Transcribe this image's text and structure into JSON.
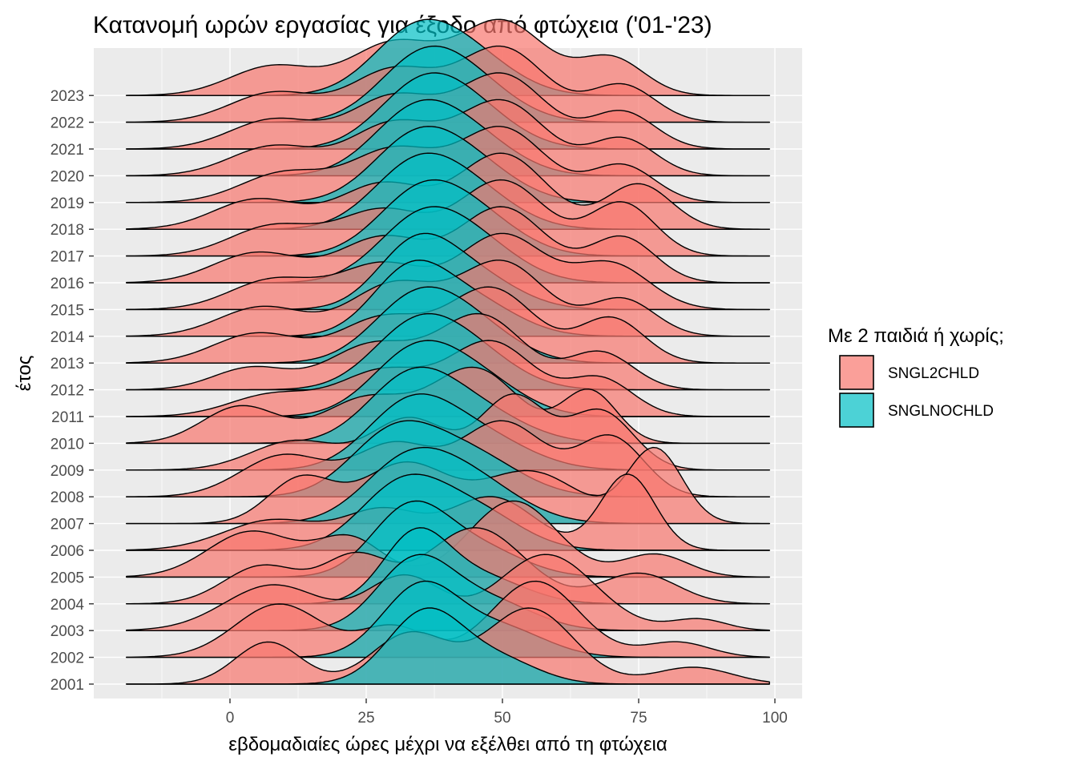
{
  "chart_data": {
    "type": "area",
    "subtype": "ridgeline",
    "title": "Κατανομή ωρών εργασίας για έξοδο από φτώχεια ('01-'23)",
    "xlabel": "εβδομαδιαίες ώρες μέχρι να εξέλθει από τη φτώχεια",
    "ylabel": "έτος",
    "xlim": [
      -25,
      105
    ],
    "x_range": [
      -19,
      99
    ],
    "xticks": [
      "0",
      "25",
      "50",
      "75",
      "100"
    ],
    "grid": true,
    "legend_position": "right",
    "legend_title": "Με 2 παιδιά ή χωρίς;",
    "categories": [
      "2001",
      "2002",
      "2003",
      "2004",
      "2005",
      "2006",
      "2007",
      "2008",
      "2009",
      "2010",
      "2011",
      "2012",
      "2013",
      "2014",
      "2015",
      "2016",
      "2017",
      "2018",
      "2019",
      "2020",
      "2021",
      "2022",
      "2023"
    ],
    "series": [
      {
        "name": "SNGL2CHLD",
        "color": "#F8766D",
        "components": [
          [
            [
              7,
              6,
              0.5
            ],
            [
              33,
              7,
              0.6
            ],
            [
              55,
              8,
              0.9
            ],
            [
              85,
              7,
              0.2
            ]
          ],
          [
            [
              9,
              8,
              0.7
            ],
            [
              30,
              6,
              0.4
            ],
            [
              56,
              8,
              1.0
            ],
            [
              82,
              6,
              0.2
            ]
          ],
          [
            [
              8,
              9,
              0.6
            ],
            [
              32,
              7,
              0.7
            ],
            [
              58,
              9,
              1.0
            ],
            [
              86,
              5,
              0.15
            ]
          ],
          [
            [
              6,
              7,
              0.5
            ],
            [
              23,
              6,
              0.6
            ],
            [
              45,
              9,
              1.0
            ],
            [
              75,
              7,
              0.4
            ]
          ],
          [
            [
              4,
              8,
              0.6
            ],
            [
              22,
              6,
              0.5
            ],
            [
              52,
              8,
              1.0
            ],
            [
              78,
              6,
              0.3
            ]
          ],
          [
            [
              8,
              9,
              0.4
            ],
            [
              28,
              7,
              0.5
            ],
            [
              48,
              8,
              0.7
            ],
            [
              73,
              5,
              1.0
            ]
          ],
          [
            [
              13,
              6,
              0.6
            ],
            [
              32,
              8,
              0.8
            ],
            [
              55,
              9,
              0.7
            ],
            [
              78,
              5,
              1.0
            ]
          ],
          [
            [
              10,
              8,
              0.5
            ],
            [
              30,
              7,
              0.6
            ],
            [
              50,
              8,
              0.9
            ],
            [
              70,
              6,
              0.7
            ]
          ],
          [
            [
              12,
              8,
              0.4
            ],
            [
              33,
              7,
              0.7
            ],
            [
              52,
              6,
              1.0
            ],
            [
              68,
              6,
              0.8
            ]
          ],
          [
            [
              2,
              7,
              0.5
            ],
            [
              25,
              8,
              0.6
            ],
            [
              45,
              8,
              1.0
            ],
            [
              66,
              5,
              0.7
            ]
          ],
          [
            [
              8,
              8,
              0.3
            ],
            [
              28,
              8,
              0.6
            ],
            [
              48,
              8,
              1.0
            ],
            [
              68,
              6,
              0.5
            ]
          ],
          [
            [
              4,
              7,
              0.3
            ],
            [
              26,
              8,
              0.6
            ],
            [
              46,
              8,
              1.0
            ],
            [
              68,
              6,
              0.5
            ]
          ],
          [
            [
              5,
              8,
              0.4
            ],
            [
              28,
              8,
              0.6
            ],
            [
              48,
              8,
              1.0
            ],
            [
              70,
              6,
              0.6
            ]
          ],
          [
            [
              6,
              8,
              0.4
            ],
            [
              30,
              8,
              0.7
            ],
            [
              50,
              8,
              1.0
            ],
            [
              72,
              6,
              0.5
            ]
          ],
          [
            [
              8,
              8,
              0.4
            ],
            [
              28,
              8,
              0.6
            ],
            [
              50,
              8,
              1.0
            ],
            [
              70,
              7,
              0.6
            ]
          ],
          [
            [
              5,
              8,
              0.4
            ],
            [
              28,
              8,
              0.6
            ],
            [
              50,
              8,
              1.0
            ],
            [
              72,
              6,
              0.6
            ]
          ],
          [
            [
              8,
              8,
              0.4
            ],
            [
              28,
              8,
              0.6
            ],
            [
              50,
              8,
              1.0
            ],
            [
              72,
              6,
              0.7
            ]
          ],
          [
            [
              5,
              8,
              0.4
            ],
            [
              28,
              8,
              0.6
            ],
            [
              50,
              8,
              1.0
            ],
            [
              75,
              6,
              0.6
            ]
          ],
          [
            [
              10,
              8,
              0.4
            ],
            [
              30,
              8,
              0.7
            ],
            [
              50,
              8,
              1.0
            ],
            [
              72,
              6,
              0.5
            ]
          ],
          [
            [
              8,
              8,
              0.4
            ],
            [
              30,
              8,
              0.7
            ],
            [
              50,
              8,
              1.0
            ],
            [
              72,
              6,
              0.5
            ]
          ],
          [
            [
              8,
              8,
              0.4
            ],
            [
              30,
              8,
              0.7
            ],
            [
              50,
              8,
              1.0
            ],
            [
              72,
              6,
              0.5
            ]
          ],
          [
            [
              8,
              8,
              0.4
            ],
            [
              30,
              8,
              0.7
            ],
            [
              50,
              8,
              1.0
            ],
            [
              72,
              6,
              0.5
            ]
          ],
          [
            [
              8,
              8,
              0.4
            ],
            [
              30,
              8,
              0.7
            ],
            [
              50,
              8,
              1.0
            ],
            [
              70,
              6,
              0.5
            ]
          ]
        ]
      },
      {
        "name": "SNGLNOCHLD",
        "color": "#00BFC4",
        "components": [
          [
            [
              36,
              7,
              1.0
            ],
            [
              50,
              7,
              0.3
            ]
          ],
          [
            [
              35,
              7,
              1.0
            ],
            [
              50,
              8,
              0.4
            ]
          ],
          [
            [
              34,
              7,
              1.0
            ],
            [
              48,
              8,
              0.4
            ]
          ],
          [
            [
              34,
              6,
              1.0
            ],
            [
              46,
              8,
              0.4
            ]
          ],
          [
            [
              33,
              7,
              1.0
            ],
            [
              46,
              8,
              0.4
            ]
          ],
          [
            [
              32,
              8,
              1.0
            ],
            [
              46,
              8,
              0.5
            ]
          ],
          [
            [
              32,
              8,
              0.9
            ],
            [
              44,
              9,
              0.7
            ]
          ],
          [
            [
              30,
              8,
              0.9
            ],
            [
              44,
              9,
              0.6
            ]
          ],
          [
            [
              33,
              8,
              1.0
            ],
            [
              46,
              9,
              0.5
            ]
          ],
          [
            [
              33,
              8,
              1.0
            ],
            [
              45,
              9,
              0.5
            ]
          ],
          [
            [
              34,
              8,
              1.0
            ],
            [
              46,
              8,
              0.5
            ]
          ],
          [
            [
              34,
              8,
              1.0
            ],
            [
              45,
              8,
              0.5
            ]
          ],
          [
            [
              34,
              8,
              1.0
            ],
            [
              45,
              8,
              0.5
            ]
          ],
          [
            [
              33,
              7,
              1.0
            ],
            [
              45,
              8,
              0.5
            ]
          ],
          [
            [
              34,
              7,
              1.0
            ],
            [
              45,
              8,
              0.5
            ]
          ],
          [
            [
              35,
              8,
              1.0
            ],
            [
              46,
              8,
              0.5
            ]
          ],
          [
            [
              35,
              8,
              1.0
            ],
            [
              46,
              8,
              0.5
            ]
          ],
          [
            [
              34,
              8,
              1.0
            ],
            [
              45,
              8,
              0.5
            ]
          ],
          [
            [
              34,
              8,
              1.0
            ],
            [
              45,
              8,
              0.5
            ]
          ],
          [
            [
              34,
              8,
              1.0
            ],
            [
              45,
              8,
              0.5
            ]
          ],
          [
            [
              35,
              8,
              1.0
            ],
            [
              45,
              8,
              0.5
            ]
          ],
          [
            [
              35,
              8,
              1.0
            ],
            [
              45,
              8,
              0.5
            ]
          ],
          [
            [
              34,
              8,
              1.0
            ],
            [
              45,
              8,
              0.5
            ]
          ]
        ]
      }
    ]
  }
}
